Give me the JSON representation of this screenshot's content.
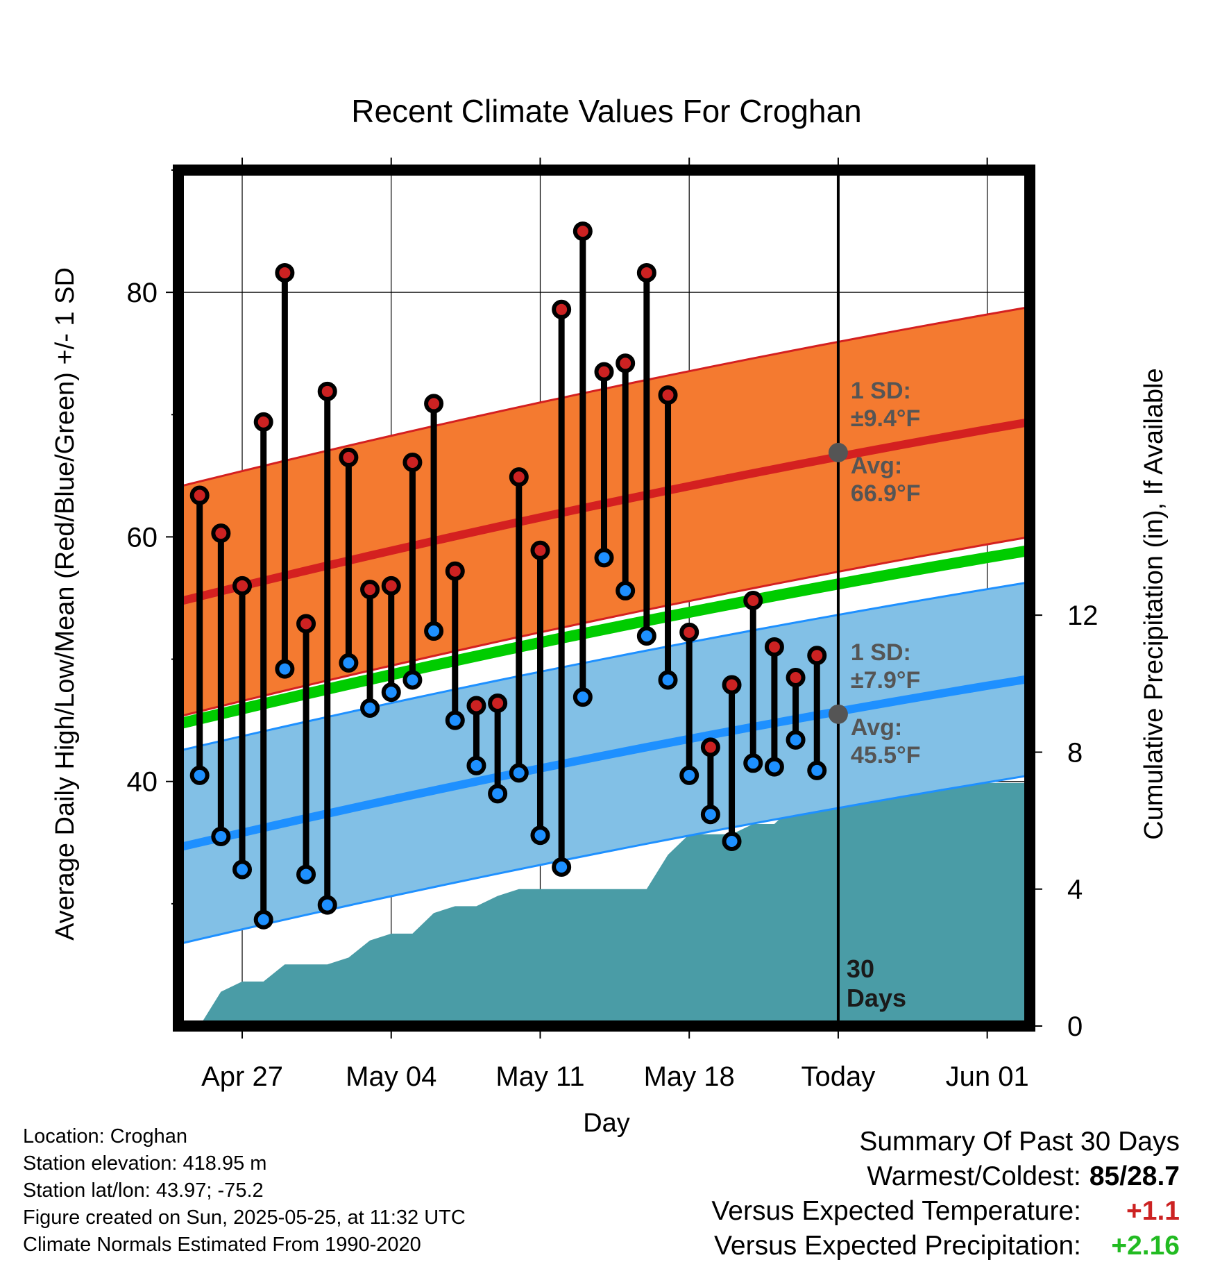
{
  "chart_data": {
    "type": "line",
    "title": "Recent Climate Values For Croghan",
    "xlabel": "Day",
    "ylabel_left": "Average Daily High/Low/Mean (Red/Blue/Green) +/- 1 SD",
    "ylabel_right": "Cumulative Precipitation (in), If Available",
    "x_tick_labels": [
      "Apr 27",
      "May 04",
      "May 11",
      "May 18",
      "Today",
      "Jun 01"
    ],
    "x_tick_dates": [
      "2025-04-27",
      "2025-05-04",
      "2025-05-11",
      "2025-05-18",
      "2025-05-25",
      "2025-06-01"
    ],
    "xlim": [
      "2025-04-24",
      "2025-06-03"
    ],
    "ylim_left": [
      20,
      90
    ],
    "yticks_left": [
      "40",
      "60",
      "80"
    ],
    "ylim_right": [
      0,
      25
    ],
    "yticks_right": [
      "0",
      "4",
      "8",
      "12"
    ],
    "grid": true,
    "today": "2025-05-25",
    "today_label": "30 Days",
    "daily": {
      "dates": [
        "2025-04-25",
        "2025-04-26",
        "2025-04-27",
        "2025-04-28",
        "2025-04-29",
        "2025-04-30",
        "2025-05-01",
        "2025-05-02",
        "2025-05-03",
        "2025-05-04",
        "2025-05-05",
        "2025-05-06",
        "2025-05-07",
        "2025-05-08",
        "2025-05-09",
        "2025-05-10",
        "2025-05-11",
        "2025-05-12",
        "2025-05-13",
        "2025-05-14",
        "2025-05-15",
        "2025-05-16",
        "2025-05-17",
        "2025-05-18",
        "2025-05-19",
        "2025-05-20",
        "2025-05-21",
        "2025-05-22",
        "2025-05-23",
        "2025-05-24"
      ],
      "high": [
        63.4,
        60.3,
        56.0,
        69.4,
        81.6,
        52.9,
        71.9,
        66.5,
        55.7,
        56.0,
        66.1,
        70.9,
        57.2,
        46.2,
        46.4,
        64.9,
        58.9,
        78.6,
        85.0,
        73.5,
        74.2,
        81.6,
        71.6,
        52.2,
        42.8,
        47.9,
        54.8,
        51.0,
        48.5,
        50.3
      ],
      "low": [
        40.5,
        35.5,
        32.8,
        28.7,
        49.2,
        32.4,
        29.9,
        49.7,
        46.0,
        47.3,
        48.3,
        52.3,
        45.0,
        41.3,
        39.0,
        40.7,
        35.6,
        33.0,
        46.9,
        58.3,
        55.6,
        51.9,
        48.3,
        40.5,
        37.3,
        35.1,
        41.5,
        41.2,
        43.4,
        40.9
      ]
    },
    "normals": {
      "dates": [
        "2025-04-24",
        "2025-06-03"
      ],
      "avg_high": [
        54.7,
        69.4
      ],
      "avg_low": [
        34.6,
        48.4
      ],
      "avg_mean": [
        44.7,
        58.9
      ],
      "high_sd": 9.4,
      "low_sd": 7.9
    },
    "precipitation": {
      "dates": [
        "2025-04-25",
        "2025-04-26",
        "2025-04-27",
        "2025-04-28",
        "2025-04-29",
        "2025-04-30",
        "2025-05-01",
        "2025-05-02",
        "2025-05-03",
        "2025-05-04",
        "2025-05-05",
        "2025-05-06",
        "2025-05-07",
        "2025-05-08",
        "2025-05-09",
        "2025-05-10",
        "2025-05-11",
        "2025-05-12",
        "2025-05-13",
        "2025-05-14",
        "2025-05-15",
        "2025-05-16",
        "2025-05-17",
        "2025-05-18",
        "2025-05-19",
        "2025-05-20",
        "2025-05-21",
        "2025-05-22",
        "2025-05-23",
        "2025-05-24",
        "2025-05-25",
        "2025-06-03"
      ],
      "cumulative": [
        0.0,
        1.0,
        1.3,
        1.3,
        1.8,
        1.8,
        1.8,
        2.0,
        2.5,
        2.7,
        2.7,
        3.3,
        3.5,
        3.5,
        3.8,
        4.0,
        4.0,
        4.0,
        4.0,
        4.0,
        4.0,
        4.0,
        5.0,
        5.6,
        5.6,
        5.6,
        5.9,
        5.9,
        6.5,
        7.1,
        7.1,
        7.1
      ]
    },
    "annotations": {
      "high_sd": {
        "line1": "1 SD:",
        "line2": "±9.4°F",
        "line3": "Avg:",
        "line4": "66.9°F",
        "value": 66.9
      },
      "low_sd": {
        "line1": "1 SD:",
        "line2": "±7.9°F",
        "line3": "Avg:",
        "line4": "45.5°F",
        "value": 45.5
      }
    },
    "colors": {
      "high_band": "#f47a30",
      "high_line": "#d42020",
      "low_band": "#82c0e6",
      "low_line": "#1e90ff",
      "mean_line": "#00cc00",
      "precip": "#4a9ca6",
      "high_dot": "#cc2222",
      "low_dot": "#1e90ff",
      "annotation": "#555555"
    }
  },
  "footer": {
    "location": "Location: Croghan",
    "elevation": "Station elevation: 418.95 m",
    "latlon": "Station lat/lon: 43.97; -75.2",
    "created": "Figure created on Sun, 2025-05-25, at 11:32 UTC",
    "normals": "Climate Normals Estimated From 1990-2020"
  },
  "summary": {
    "title": "Summary Of Past 30 Days",
    "warmest_coldest_label": "Warmest/Coldest:",
    "warmest": "85",
    "coldest": "28.7",
    "temp_label": "Versus Expected Temperature:",
    "temp_value": "+1.1",
    "temp_color": "#cc2222",
    "precip_label": "Versus Expected Precipitation:",
    "precip_value": "+2.16",
    "precip_color": "#22bb22"
  }
}
